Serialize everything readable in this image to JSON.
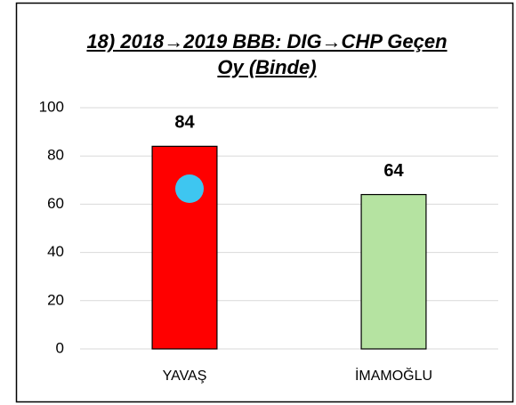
{
  "chart_data": {
    "type": "bar",
    "title": "18) 2018→2019 BBB: DIG→CHP Geçen Oy (Binde)",
    "categories": [
      "YAVAŞ",
      "İMAMOĞLU"
    ],
    "values": [
      84,
      64
    ],
    "colors": [
      "#ff0000",
      "#b5e3a1"
    ],
    "ylim": [
      0,
      100
    ],
    "yticks": [
      0,
      20,
      40,
      60,
      80,
      100
    ],
    "grid": true
  }
}
